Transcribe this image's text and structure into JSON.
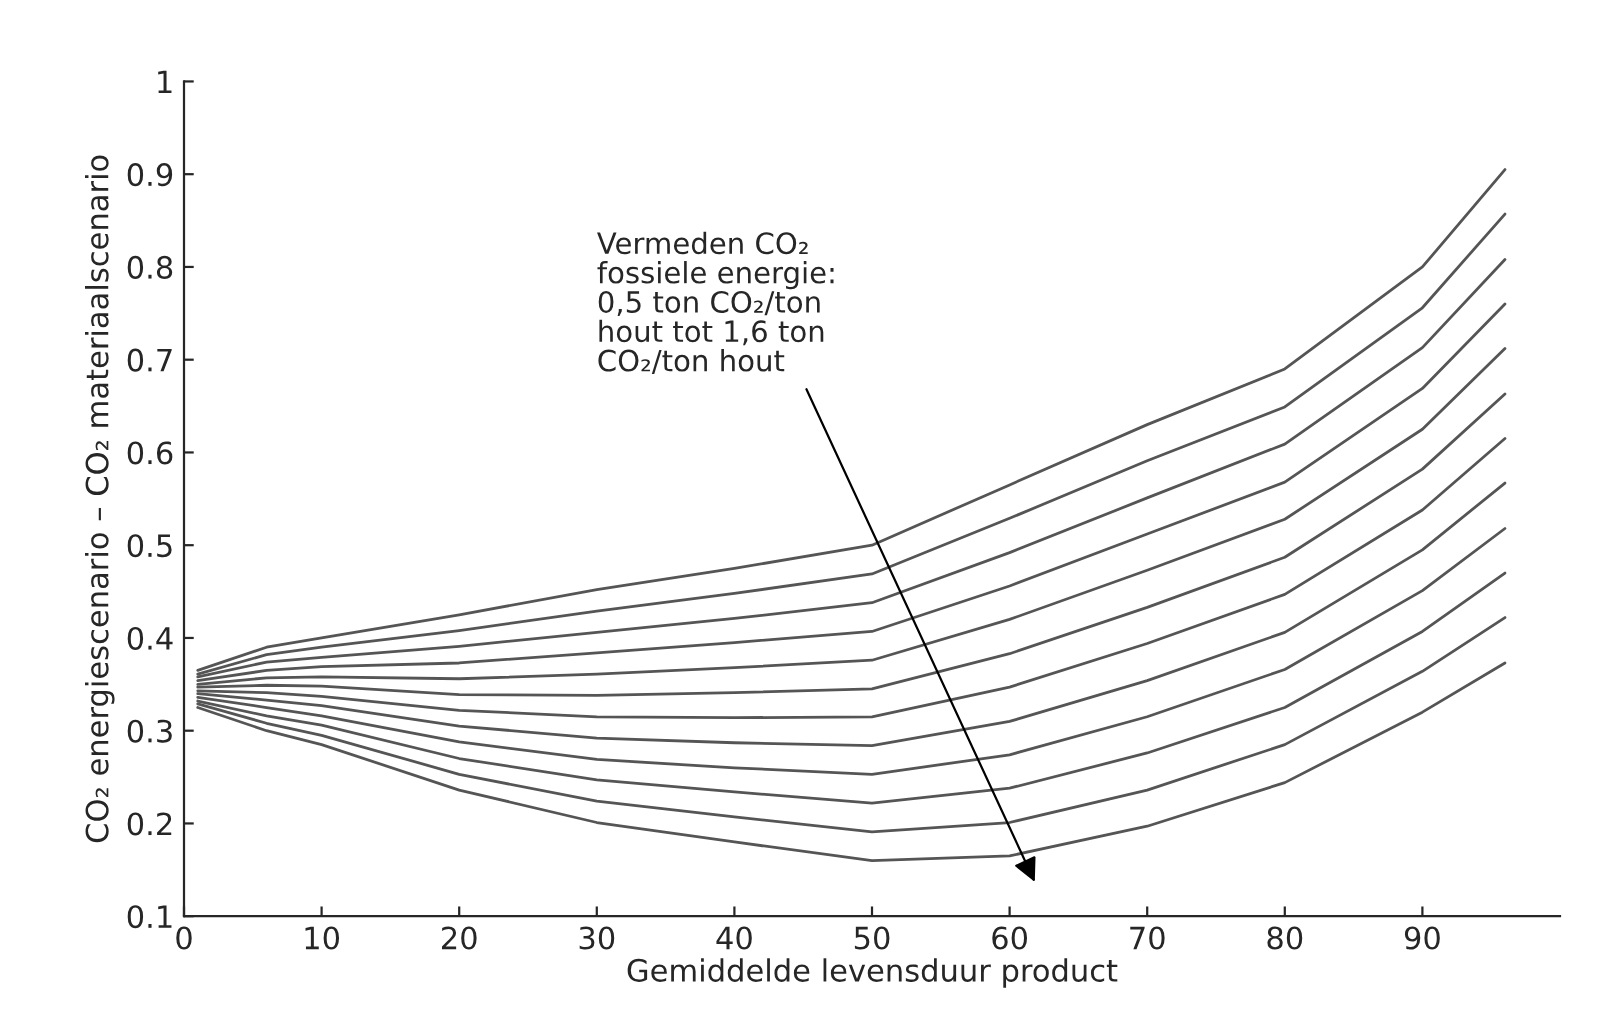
{
  "chart_data": {
    "type": "line",
    "xlabel": "Gemiddelde levensduur product",
    "ylabel": "CO₂ energiescenario – CO₂ materiaalscenario",
    "x": [
      1,
      6,
      10,
      20,
      30,
      40,
      50,
      60,
      70,
      80,
      90,
      96
    ],
    "series": [
      {
        "color": "#555555",
        "values": [
          0.365,
          0.39,
          0.4,
          0.425,
          0.452,
          0.475,
          0.5,
          0.565,
          0.63,
          0.69,
          0.8,
          0.905
        ]
      },
      {
        "color": "#555555",
        "values": [
          0.361,
          0.382,
          0.39,
          0.408,
          0.429,
          0.448,
          0.469,
          0.529,
          0.591,
          0.649,
          0.756,
          0.857
        ]
      },
      {
        "color": "#555555",
        "values": [
          0.358,
          0.374,
          0.379,
          0.391,
          0.406,
          0.421,
          0.438,
          0.492,
          0.551,
          0.609,
          0.713,
          0.808
        ]
      },
      {
        "color": "#555555",
        "values": [
          0.354,
          0.365,
          0.369,
          0.373,
          0.384,
          0.395,
          0.407,
          0.456,
          0.512,
          0.568,
          0.669,
          0.76
        ]
      },
      {
        "color": "#555555",
        "values": [
          0.35,
          0.357,
          0.358,
          0.356,
          0.361,
          0.368,
          0.376,
          0.42,
          0.473,
          0.528,
          0.625,
          0.712
        ]
      },
      {
        "color": "#555555",
        "values": [
          0.347,
          0.349,
          0.348,
          0.339,
          0.338,
          0.341,
          0.345,
          0.383,
          0.433,
          0.487,
          0.582,
          0.663
        ]
      },
      {
        "color": "#555555",
        "values": [
          0.343,
          0.341,
          0.337,
          0.322,
          0.315,
          0.314,
          0.315,
          0.347,
          0.394,
          0.447,
          0.538,
          0.615
        ]
      },
      {
        "color": "#555555",
        "values": [
          0.34,
          0.333,
          0.327,
          0.305,
          0.292,
          0.287,
          0.284,
          0.31,
          0.354,
          0.406,
          0.495,
          0.567
        ]
      },
      {
        "color": "#555555",
        "values": [
          0.336,
          0.325,
          0.316,
          0.288,
          0.269,
          0.26,
          0.253,
          0.274,
          0.315,
          0.366,
          0.451,
          0.518
        ]
      },
      {
        "color": "#555555",
        "values": [
          0.332,
          0.316,
          0.306,
          0.27,
          0.247,
          0.234,
          0.222,
          0.238,
          0.276,
          0.325,
          0.407,
          0.47
        ]
      },
      {
        "color": "#555555",
        "values": [
          0.329,
          0.308,
          0.295,
          0.253,
          0.224,
          0.207,
          0.191,
          0.201,
          0.236,
          0.285,
          0.364,
          0.422
        ]
      },
      {
        "color": "#555555",
        "values": [
          0.325,
          0.3,
          0.285,
          0.236,
          0.201,
          0.18,
          0.16,
          0.165,
          0.197,
          0.244,
          0.32,
          0.373
        ]
      }
    ],
    "annotations": [
      "Vermeden CO₂\nfossiele energie:\n0,5 ton CO₂/ton\nhout tot 1,6 ton\nCO₂/ton hout"
    ],
    "xlim": [
      0,
      100
    ],
    "xticks": [
      0,
      10,
      20,
      30,
      40,
      50,
      60,
      70,
      80,
      90
    ],
    "ylim": [
      0.1,
      1
    ],
    "yticks": [
      0.1,
      0.2,
      0.3,
      0.4,
      0.5,
      0.6,
      0.7,
      0.8,
      0.9,
      1
    ],
    "grid": false,
    "legend": false,
    "marker": "none",
    "line_style": "solid"
  }
}
